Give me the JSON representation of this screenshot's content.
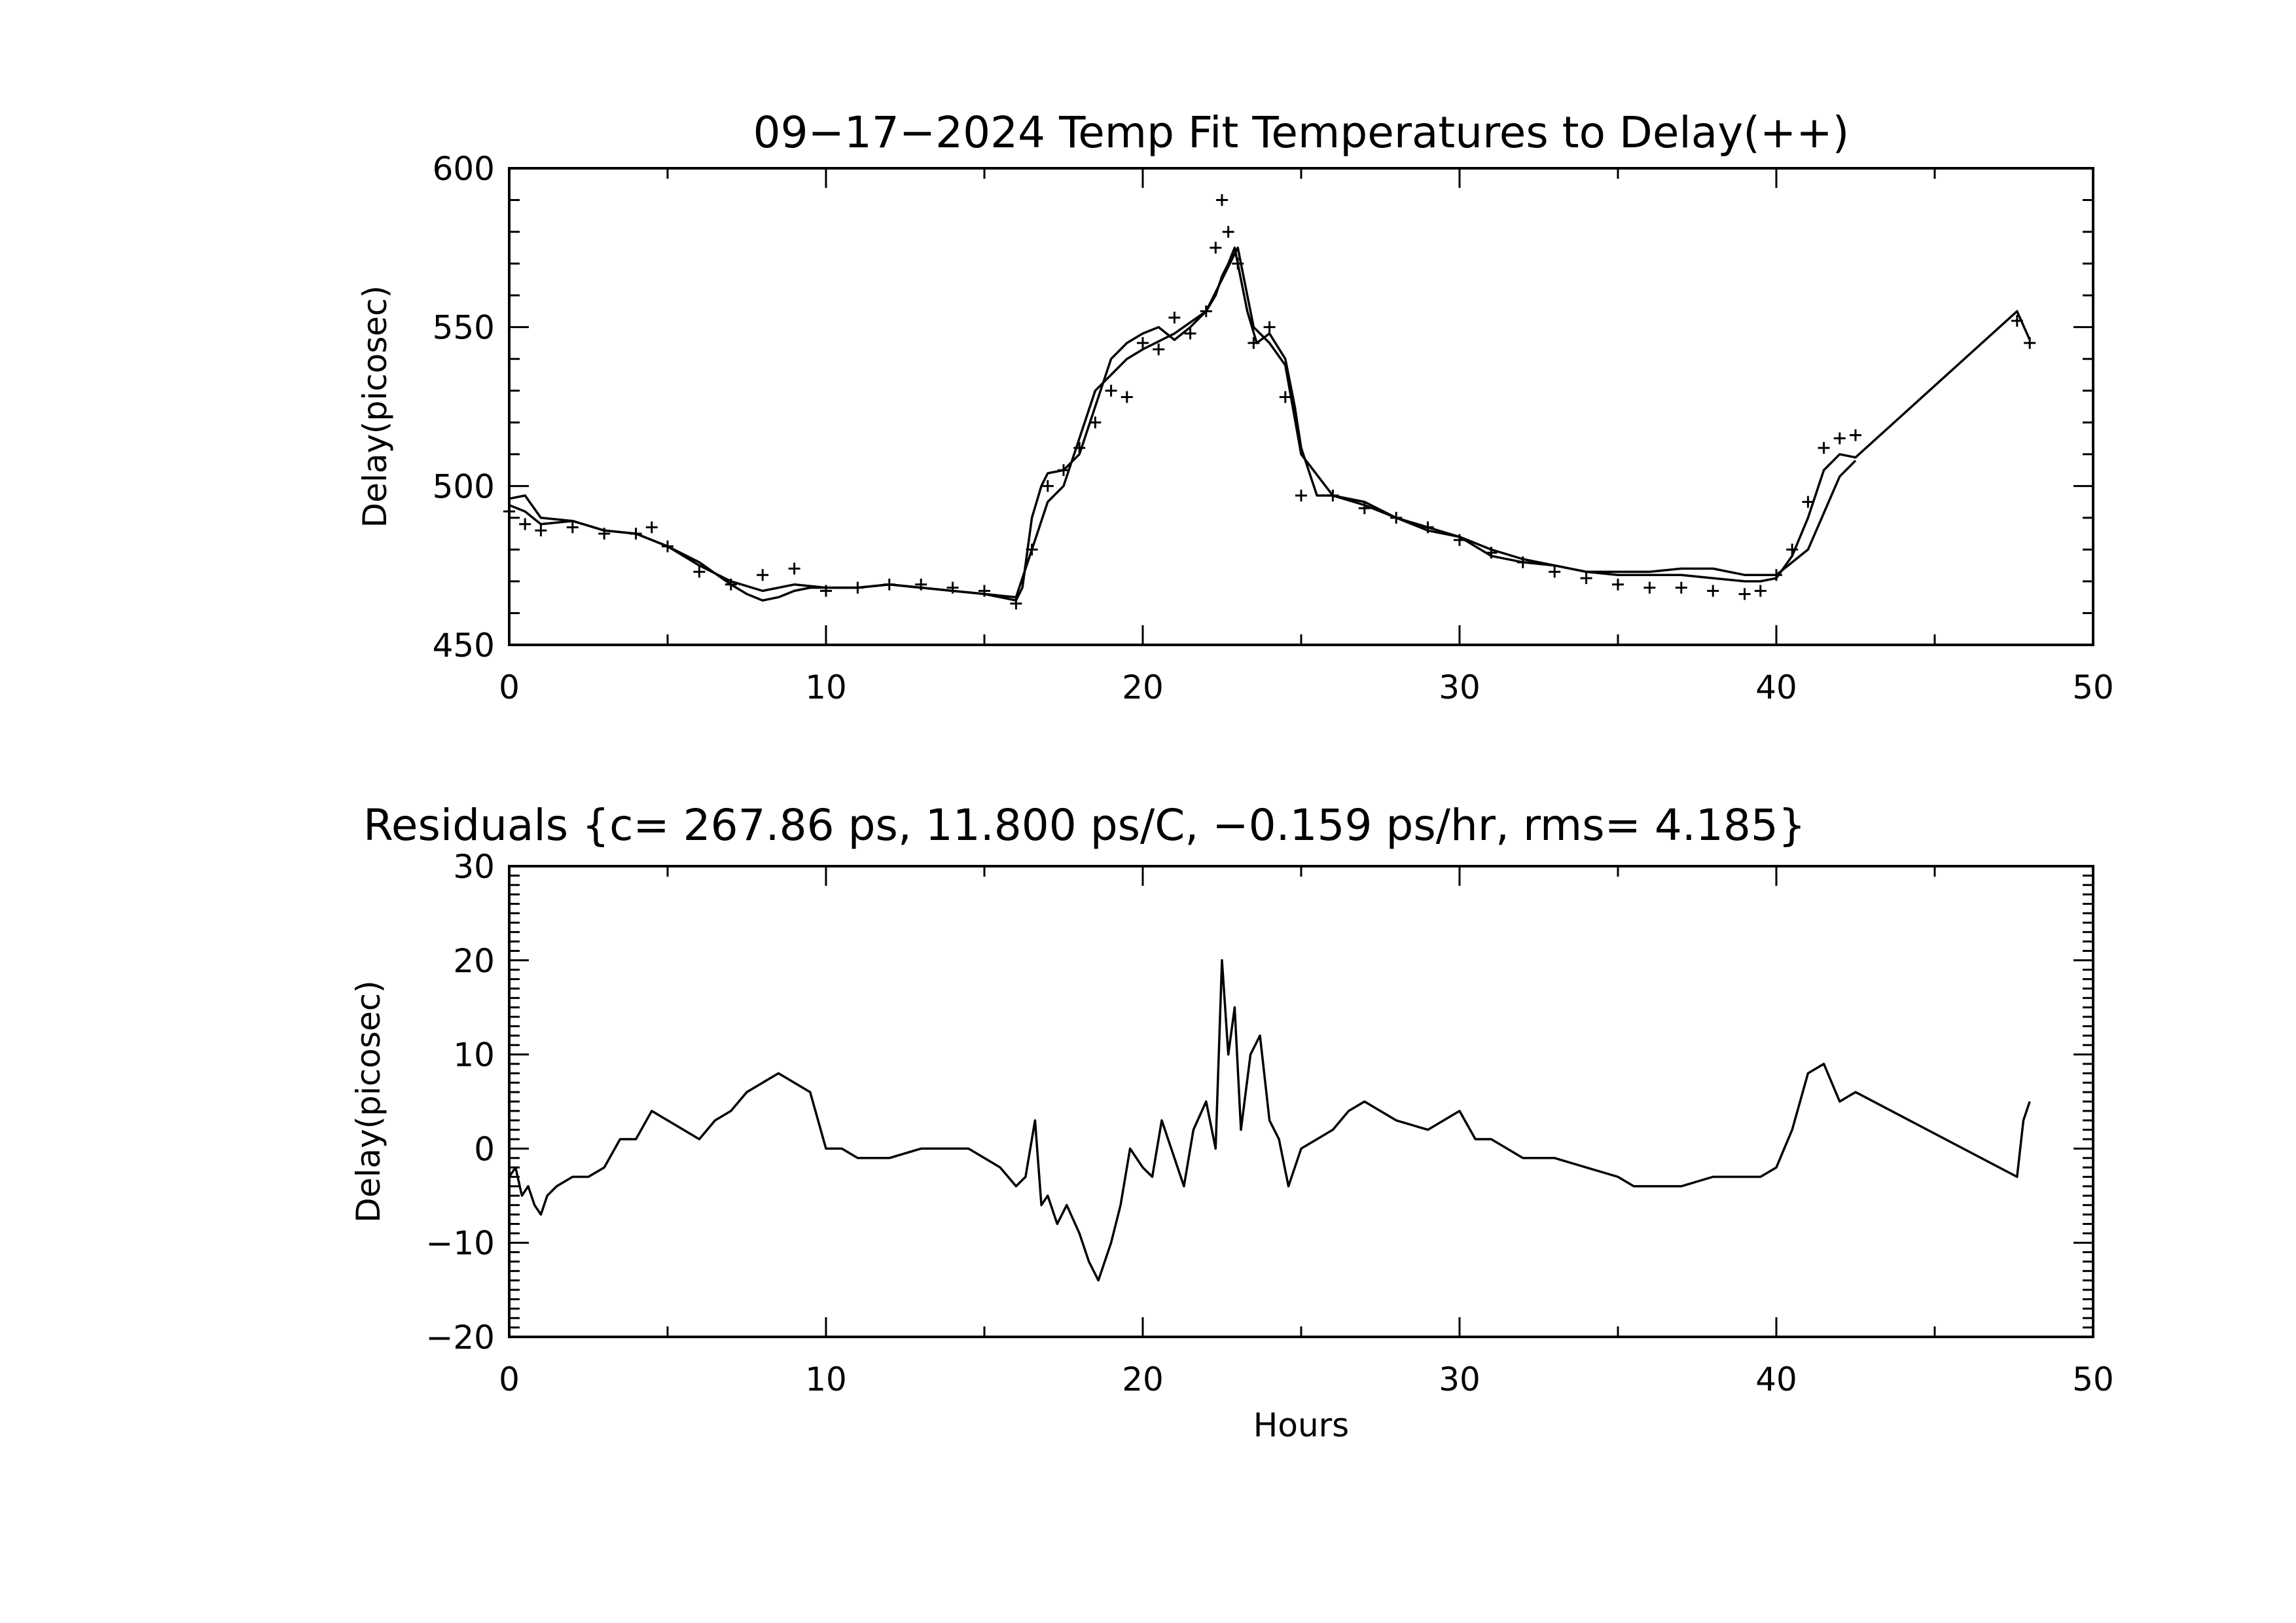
{
  "chart_data": [
    {
      "type": "line",
      "title": "09−17−2024 Temp Fit Temperatures to Delay(++)",
      "xlabel": "",
      "ylabel": "Delay(picosec)",
      "xlim": [
        0,
        50
      ],
      "ylim": [
        450,
        600
      ],
      "x_ticks": [
        "0",
        "10",
        "20",
        "30",
        "40",
        "50"
      ],
      "y_ticks": [
        "450",
        "500",
        "550",
        "600"
      ],
      "grid": false,
      "series": [
        {
          "style": "line",
          "x": [
            0,
            0.5,
            1,
            2,
            3,
            4,
            4.5,
            5,
            6,
            7,
            7.5,
            8,
            8.5,
            9,
            9.5,
            10,
            11,
            12,
            13,
            14,
            15,
            15.5,
            16,
            16.2,
            16.5,
            16.8,
            17,
            17.5,
            18,
            18.5,
            19,
            19.5,
            20,
            20.5,
            21,
            21.5,
            22,
            22.3,
            22.5,
            22.7,
            22.9,
            23,
            23.3,
            23.6,
            24,
            24.5,
            24.8,
            25,
            25.5,
            26,
            27,
            28,
            29,
            30,
            31,
            32,
            33,
            34,
            35,
            36,
            37,
            38,
            39,
            39.5,
            40,
            40.5,
            41,
            41.5,
            42,
            42.5,
            47.6,
            48
          ],
          "y": [
            496,
            497,
            490,
            489,
            486,
            485,
            483,
            481,
            476,
            469,
            466,
            464,
            465,
            467,
            468,
            468,
            468,
            469,
            468,
            467,
            466,
            465,
            464,
            468,
            490,
            500,
            504,
            505,
            510,
            525,
            540,
            545,
            548,
            550,
            546,
            550,
            555,
            560,
            566,
            570,
            575,
            570,
            555,
            545,
            548,
            540,
            525,
            512,
            497,
            497,
            494,
            490,
            487,
            484,
            480,
            477,
            475,
            473,
            472,
            472,
            472,
            471,
            470,
            470,
            471,
            478,
            490,
            505,
            510,
            509,
            555,
            546
          ]
        },
        {
          "style": "line",
          "x": [
            0,
            0.5,
            1,
            2,
            3,
            4,
            5,
            6,
            7,
            8,
            9,
            10,
            11,
            12,
            13,
            14,
            15,
            16,
            16.5,
            17,
            17.5,
            18,
            18.5,
            19,
            19.5,
            20,
            21,
            22,
            22.5,
            23,
            23.5,
            24,
            24.5,
            25,
            26,
            27,
            28,
            29,
            30,
            31,
            32,
            33,
            34,
            35,
            36,
            37,
            38,
            39,
            40,
            41,
            42,
            42.5
          ],
          "y": [
            494,
            492,
            488,
            489,
            486,
            485,
            481,
            475,
            470,
            467,
            469,
            468,
            468,
            469,
            468,
            467,
            466,
            465,
            480,
            495,
            500,
            515,
            530,
            535,
            540,
            543,
            548,
            555,
            565,
            575,
            550,
            545,
            538,
            510,
            497,
            495,
            490,
            486,
            484,
            478,
            476,
            475,
            473,
            473,
            473,
            474,
            474,
            472,
            472,
            480,
            503,
            508
          ]
        },
        {
          "style": "marker",
          "name": "++",
          "x": [
            0,
            0.5,
            1,
            2,
            3,
            4,
            4.5,
            5,
            6,
            7,
            8,
            9,
            10,
            11,
            12,
            13,
            14,
            15,
            16,
            16.5,
            17,
            17.5,
            18,
            18.5,
            19,
            19.5,
            20,
            20.5,
            21,
            21.5,
            22,
            22.3,
            22.5,
            22.7,
            23,
            23.5,
            24,
            24.5,
            25,
            26,
            27,
            28,
            29,
            30,
            31,
            32,
            33,
            34,
            35,
            36,
            37,
            38,
            39,
            39.5,
            40,
            40.5,
            41,
            41.5,
            42,
            42.5,
            47.6,
            48
          ],
          "y": [
            492,
            488,
            486,
            487,
            485,
            485,
            487,
            481,
            473,
            469,
            472,
            474,
            467,
            468,
            469,
            469,
            468,
            467,
            463,
            480,
            500,
            505,
            512,
            520,
            530,
            528,
            545,
            543,
            553,
            548,
            555,
            575,
            590,
            580,
            570,
            545,
            550,
            528,
            497,
            497,
            493,
            490,
            487,
            483,
            479,
            476,
            473,
            471,
            469,
            468,
            468,
            467,
            466,
            467,
            472,
            480,
            495,
            512,
            515,
            516,
            552,
            545
          ]
        }
      ]
    },
    {
      "type": "line",
      "title": "Residuals {c=    267.86   ps,    11.800   ps/C,   −0.159 ps/hr,   rms=    4.185}",
      "xlabel": "Hours",
      "ylabel": "Delay(picosec)",
      "xlim": [
        0,
        50
      ],
      "ylim": [
        -20,
        30
      ],
      "x_ticks": [
        "0",
        "10",
        "20",
        "30",
        "40",
        "50"
      ],
      "y_ticks": [
        "−20",
        "−10",
        "0",
        "10",
        "20",
        "30"
      ],
      "grid": false,
      "series": [
        {
          "style": "line",
          "x": [
            0,
            0.2,
            0.4,
            0.6,
            0.8,
            1,
            1.2,
            1.5,
            2,
            2.5,
            3,
            3.5,
            4,
            4.5,
            5,
            5.5,
            6,
            6.5,
            7,
            7.5,
            8,
            8.5,
            9,
            9.5,
            10,
            10.5,
            11,
            12,
            13,
            14,
            14.5,
            15,
            15.5,
            16,
            16.3,
            16.6,
            16.8,
            17,
            17.3,
            17.6,
            18,
            18.3,
            18.6,
            19,
            19.3,
            19.6,
            20,
            20.3,
            20.6,
            21,
            21.3,
            21.6,
            22,
            22.3,
            22.5,
            22.7,
            22.9,
            23.1,
            23.4,
            23.7,
            24,
            24.3,
            24.6,
            25,
            25.5,
            26,
            26.5,
            27,
            27.5,
            28,
            29,
            30,
            30.5,
            31,
            32,
            33,
            34,
            35,
            35.5,
            36,
            37,
            38,
            39,
            39.5,
            40,
            40.5,
            41,
            41.5,
            42,
            42.5,
            47.6,
            47.8,
            48
          ],
          "y": [
            -3,
            -2,
            -5,
            -4,
            -6,
            -7,
            -5,
            -4,
            -3,
            -3,
            -2,
            1,
            1,
            4,
            3,
            2,
            1,
            3,
            4,
            6,
            7,
            8,
            7,
            6,
            0,
            0,
            -1,
            -1,
            0,
            0,
            0,
            -1,
            -2,
            -4,
            -3,
            3,
            -6,
            -5,
            -8,
            -6,
            -9,
            -12,
            -14,
            -10,
            -6,
            0,
            -2,
            -3,
            3,
            -1,
            -4,
            2,
            5,
            0,
            20,
            10,
            15,
            2,
            10,
            12,
            3,
            1,
            -4,
            0,
            1,
            2,
            4,
            5,
            4,
            3,
            2,
            4,
            1,
            1,
            -1,
            -1,
            -2,
            -3,
            -4,
            -4,
            -4,
            -3,
            -3,
            -3,
            -2,
            2,
            8,
            9,
            5,
            6,
            -3,
            3,
            5
          ]
        }
      ]
    }
  ]
}
